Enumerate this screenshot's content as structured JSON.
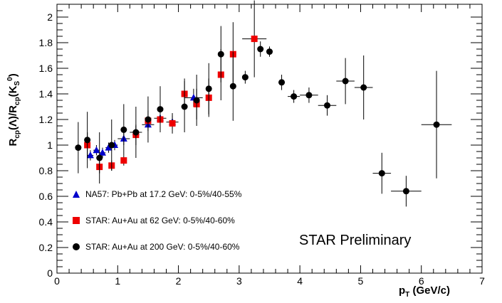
{
  "chart_data": {
    "type": "scatter",
    "title": "",
    "xlabel": "p_T (GeV/c)",
    "ylabel": "R_cp(Λ)/R_cp(K_S^0)",
    "xlim": [
      0,
      7
    ],
    "ylim": [
      0,
      2.1
    ],
    "x_ticks": [
      0,
      1,
      2,
      3,
      4,
      5,
      6,
      7
    ],
    "y_ticks": [
      0,
      0.2,
      0.4,
      0.6,
      0.8,
      1,
      1.2,
      1.4,
      1.6,
      1.8,
      2
    ],
    "grid": false,
    "legend_position": "lower-left",
    "annotation": "STAR Preliminary",
    "series": [
      {
        "name": "NA57: Pb+Pb at 17.2 GeV: 0-5%/40-55%",
        "marker": "triangle",
        "color": "#0000cc",
        "points": [
          {
            "x": 0.55,
            "y": 0.92,
            "xerr": 0.05,
            "yerr": 0.04
          },
          {
            "x": 0.65,
            "y": 0.96,
            "xerr": 0.05,
            "yerr": 0.04
          },
          {
            "x": 0.75,
            "y": 0.94,
            "xerr": 0.05,
            "yerr": 0.04
          },
          {
            "x": 0.85,
            "y": 0.98,
            "xerr": 0.05,
            "yerr": 0.04
          },
          {
            "x": 0.95,
            "y": 1.0,
            "xerr": 0.05,
            "yerr": 0.04
          },
          {
            "x": 1.1,
            "y": 1.05,
            "xerr": 0.1,
            "yerr": 0.05
          },
          {
            "x": 1.3,
            "y": 1.1,
            "xerr": 0.1,
            "yerr": 0.05
          },
          {
            "x": 1.5,
            "y": 1.16,
            "xerr": 0.1,
            "yerr": 0.05
          },
          {
            "x": 1.7,
            "y": 1.21,
            "xerr": 0.1,
            "yerr": 0.05
          },
          {
            "x": 1.9,
            "y": 1.18,
            "xerr": 0.1,
            "yerr": 0.05
          },
          {
            "x": 2.25,
            "y": 1.37,
            "xerr": 0.15,
            "yerr": 0.07
          }
        ]
      },
      {
        "name": "STAR: Au+Au at 62 GeV: 0-5%/40-60%",
        "marker": "square",
        "color": "#ee0000",
        "points": [
          {
            "x": 0.5,
            "y": 1.0,
            "xerr": 0.05,
            "yerr": 0.1
          },
          {
            "x": 0.7,
            "y": 0.83,
            "xerr": 0.05,
            "yerr": 0.05
          },
          {
            "x": 0.9,
            "y": 0.84,
            "xerr": 0.05,
            "yerr": 0.04
          },
          {
            "x": 1.1,
            "y": 0.88,
            "xerr": 0.05,
            "yerr": 0.04
          },
          {
            "x": 1.3,
            "y": 1.08,
            "xerr": 0.05,
            "yerr": 0.08
          },
          {
            "x": 1.5,
            "y": 1.19,
            "xerr": 0.05,
            "yerr": 0.08
          },
          {
            "x": 1.7,
            "y": 1.2,
            "xerr": 0.05,
            "yerr": 0.08
          },
          {
            "x": 1.9,
            "y": 1.17,
            "xerr": 0.05,
            "yerr": 0.08
          },
          {
            "x": 2.1,
            "y": 1.4,
            "xerr": 0.05,
            "yerr": 0.12
          },
          {
            "x": 2.3,
            "y": 1.32,
            "xerr": 0.05,
            "yerr": 0.12
          },
          {
            "x": 2.5,
            "y": 1.37,
            "xerr": 0.05,
            "yerr": 0.15
          },
          {
            "x": 2.7,
            "y": 1.55,
            "xerr": 0.05,
            "yerr": 0.2
          },
          {
            "x": 2.9,
            "y": 1.71,
            "xerr": 0.05,
            "yerr": 0.25
          },
          {
            "x": 3.25,
            "y": 1.83,
            "xerr": 0.2,
            "yerr": 0.3
          }
        ]
      },
      {
        "name": "STAR: Au+Au at 200 GeV: 0-5%/40-60%",
        "marker": "circle",
        "color": "#000000",
        "points": [
          {
            "x": 0.35,
            "y": 0.98,
            "xerr": 0.05,
            "yerr": 0.2
          },
          {
            "x": 0.5,
            "y": 1.04,
            "xerr": 0.05,
            "yerr": 0.22
          },
          {
            "x": 0.7,
            "y": 0.9,
            "xerr": 0.05,
            "yerr": 0.2
          },
          {
            "x": 0.9,
            "y": 1.0,
            "xerr": 0.05,
            "yerr": 0.2
          },
          {
            "x": 1.1,
            "y": 1.12,
            "xerr": 0.05,
            "yerr": 0.2
          },
          {
            "x": 1.3,
            "y": 1.1,
            "xerr": 0.05,
            "yerr": 0.2
          },
          {
            "x": 1.5,
            "y": 1.2,
            "xerr": 0.05,
            "yerr": 0.18
          },
          {
            "x": 1.7,
            "y": 1.28,
            "xerr": 0.05,
            "yerr": 0.18
          },
          {
            "x": 2.1,
            "y": 1.3,
            "xerr": 0.05,
            "yerr": 0.2
          },
          {
            "x": 2.3,
            "y": 1.35,
            "xerr": 0.05,
            "yerr": 0.2
          },
          {
            "x": 2.5,
            "y": 1.44,
            "xerr": 0.05,
            "yerr": 0.2
          },
          {
            "x": 2.7,
            "y": 1.71,
            "xerr": 0.05,
            "yerr": 0.22
          },
          {
            "x": 2.9,
            "y": 1.46,
            "xerr": 0.05,
            "yerr": 0.27
          },
          {
            "x": 3.1,
            "y": 1.53,
            "xerr": 0.05,
            "yerr": 0.05
          },
          {
            "x": 3.35,
            "y": 1.75,
            "xerr": 0.05,
            "yerr": 0.06
          },
          {
            "x": 3.5,
            "y": 1.73,
            "xerr": 0.05,
            "yerr": 0.04
          },
          {
            "x": 3.7,
            "y": 1.49,
            "xerr": 0.05,
            "yerr": 0.06
          },
          {
            "x": 3.9,
            "y": 1.38,
            "xerr": 0.1,
            "yerr": 0.05
          },
          {
            "x": 4.15,
            "y": 1.39,
            "xerr": 0.15,
            "yerr": 0.06
          },
          {
            "x": 4.45,
            "y": 1.31,
            "xerr": 0.15,
            "yerr": 0.08
          },
          {
            "x": 4.75,
            "y": 1.5,
            "xerr": 0.15,
            "yerr": 0.18
          },
          {
            "x": 5.05,
            "y": 1.45,
            "xerr": 0.15,
            "yerr": 0.25
          },
          {
            "x": 5.35,
            "y": 0.78,
            "xerr": 0.15,
            "yerr": 0.16
          },
          {
            "x": 5.75,
            "y": 0.64,
            "xerr": 0.25,
            "yerr": 0.12
          },
          {
            "x": 6.25,
            "y": 1.16,
            "xerr": 0.25,
            "yerr": 0.42
          }
        ]
      }
    ]
  },
  "labels": {
    "annotation": "STAR Preliminary",
    "xlabel_main": "p",
    "xlabel_sub": "T",
    "xlabel_rest": " (GeV/c)",
    "ylabel_parts": [
      "R",
      "cp",
      "(Λ)/R",
      "cp",
      "(K",
      "S",
      "0",
      ")"
    ]
  }
}
